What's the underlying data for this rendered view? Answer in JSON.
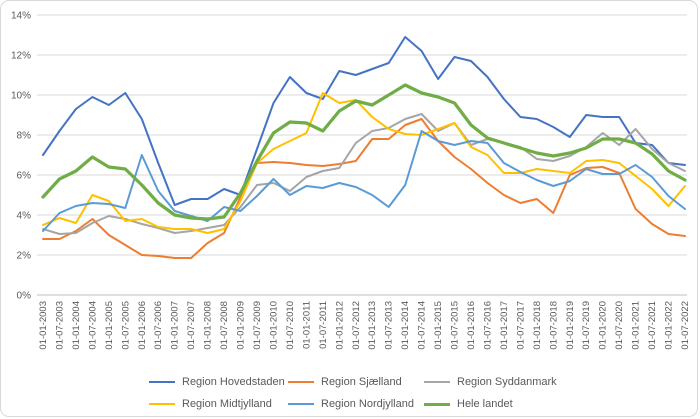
{
  "chart_data": {
    "type": "line",
    "title": "",
    "grid": true,
    "legend_position": "bottom",
    "y_axis": {
      "min": 0,
      "max": 14,
      "step": 2,
      "format": "percent",
      "tick_labels": [
        "0%",
        "2%",
        "4%",
        "6%",
        "8%",
        "10%",
        "12%",
        "14%"
      ]
    },
    "x_axis": {
      "label_rotation": -90
    },
    "categories": [
      "01-01-2003",
      "01-07-2003",
      "01-01-2004",
      "01-07-2004",
      "01-01-2005",
      "01-07-2005",
      "01-01-2006",
      "01-07-2006",
      "01-01-2007",
      "01-07-2007",
      "01-01-2008",
      "01-07-2008",
      "01-01-2009",
      "01-07-2009",
      "01-01-2010",
      "01-07-2010",
      "01-01-2011",
      "01-07-2011",
      "01-01-2012",
      "01-07-2012",
      "01-01-2013",
      "01-07-2013",
      "01-01-2014",
      "01-07-2014",
      "01-01-2015",
      "01-07-2015",
      "01-01-2016",
      "01-07-2016",
      "01-01-2017",
      "01-07-2017",
      "01-01-2018",
      "01-07-2018",
      "01-01-2019",
      "01-07-2019",
      "01-01-2020",
      "01-07-2020",
      "01-01-2021",
      "01-07-2021",
      "01-01-2022",
      "01-07-2022"
    ],
    "series": [
      {
        "name": "Region Hovedstaden",
        "color": "#4472C4",
        "width": 2,
        "values": [
          7.0,
          8.2,
          9.3,
          9.9,
          9.5,
          10.1,
          8.8,
          6.6,
          4.5,
          4.8,
          4.8,
          5.3,
          5.0,
          7.3,
          9.6,
          10.9,
          10.1,
          9.8,
          11.2,
          11.0,
          11.3,
          11.6,
          12.9,
          12.2,
          10.8,
          11.9,
          11.7,
          10.9,
          9.8,
          8.9,
          8.8,
          8.4,
          7.9,
          9.0,
          8.9,
          8.9,
          7.6,
          7.5,
          6.6,
          6.5
        ]
      },
      {
        "name": "Region Sjælland",
        "color": "#ED7D31",
        "width": 2,
        "values": [
          2.8,
          2.8,
          3.2,
          3.8,
          3.0,
          2.5,
          2.0,
          1.95,
          1.85,
          1.85,
          2.6,
          3.1,
          4.9,
          6.6,
          6.65,
          6.6,
          6.5,
          6.45,
          6.55,
          6.7,
          7.8,
          7.8,
          8.5,
          8.8,
          7.7,
          6.9,
          6.3,
          5.6,
          5.0,
          4.6,
          4.8,
          4.1,
          6.0,
          6.35,
          6.4,
          6.1,
          4.3,
          3.55,
          3.05,
          2.95
        ]
      },
      {
        "name": "Region Syddanmark",
        "color": "#A5A5A5",
        "width": 2,
        "values": [
          3.3,
          3.05,
          3.1,
          3.6,
          3.95,
          3.8,
          3.55,
          3.35,
          3.1,
          3.2,
          3.35,
          3.5,
          4.4,
          5.5,
          5.6,
          5.2,
          5.9,
          6.2,
          6.35,
          7.6,
          8.2,
          8.35,
          8.8,
          9.05,
          8.2,
          8.6,
          7.5,
          7.8,
          7.6,
          7.4,
          6.8,
          6.7,
          6.95,
          7.4,
          8.1,
          7.5,
          8.3,
          7.3,
          6.6,
          6.2
        ]
      },
      {
        "name": "Region Midtjylland",
        "color": "#FFC000",
        "width": 2,
        "values": [
          3.5,
          3.85,
          3.6,
          5.0,
          4.7,
          3.7,
          3.8,
          3.4,
          3.3,
          3.3,
          3.1,
          3.3,
          4.7,
          6.6,
          7.3,
          7.7,
          8.1,
          10.1,
          9.6,
          9.75,
          8.9,
          8.3,
          8.05,
          8.0,
          8.3,
          8.6,
          7.4,
          7.0,
          6.1,
          6.1,
          6.3,
          6.2,
          6.1,
          6.7,
          6.75,
          6.6,
          5.95,
          5.3,
          4.45,
          5.45
        ]
      },
      {
        "name": "Region Nordjylland",
        "color": "#5B9BD5",
        "width": 2,
        "values": [
          3.2,
          4.1,
          4.45,
          4.6,
          4.55,
          4.35,
          7.0,
          5.2,
          4.2,
          3.95,
          3.7,
          4.4,
          4.2,
          4.95,
          5.8,
          5.0,
          5.45,
          5.35,
          5.6,
          5.4,
          5.0,
          4.4,
          5.5,
          8.2,
          7.7,
          7.5,
          7.7,
          7.6,
          6.6,
          6.15,
          5.75,
          5.45,
          5.7,
          6.3,
          6.05,
          6.05,
          6.5,
          5.9,
          4.95,
          4.3
        ]
      },
      {
        "name": "Hele landet",
        "color": "#70AD47",
        "width": 3.25,
        "values": [
          4.9,
          5.8,
          6.2,
          6.9,
          6.4,
          6.3,
          5.5,
          4.6,
          4.0,
          3.85,
          3.8,
          3.9,
          5.1,
          6.7,
          8.1,
          8.65,
          8.6,
          8.2,
          9.2,
          9.7,
          9.5,
          10.0,
          10.5,
          10.1,
          9.9,
          9.6,
          8.5,
          7.85,
          7.6,
          7.35,
          7.1,
          6.95,
          7.1,
          7.35,
          7.8,
          7.8,
          7.6,
          7.05,
          6.2,
          5.75
        ]
      }
    ],
    "colors": {
      "gridline": "#d9d9d9",
      "axis_line": "#bfbfbf",
      "tick_label": "#595959",
      "legend_label": "#595959"
    }
  }
}
